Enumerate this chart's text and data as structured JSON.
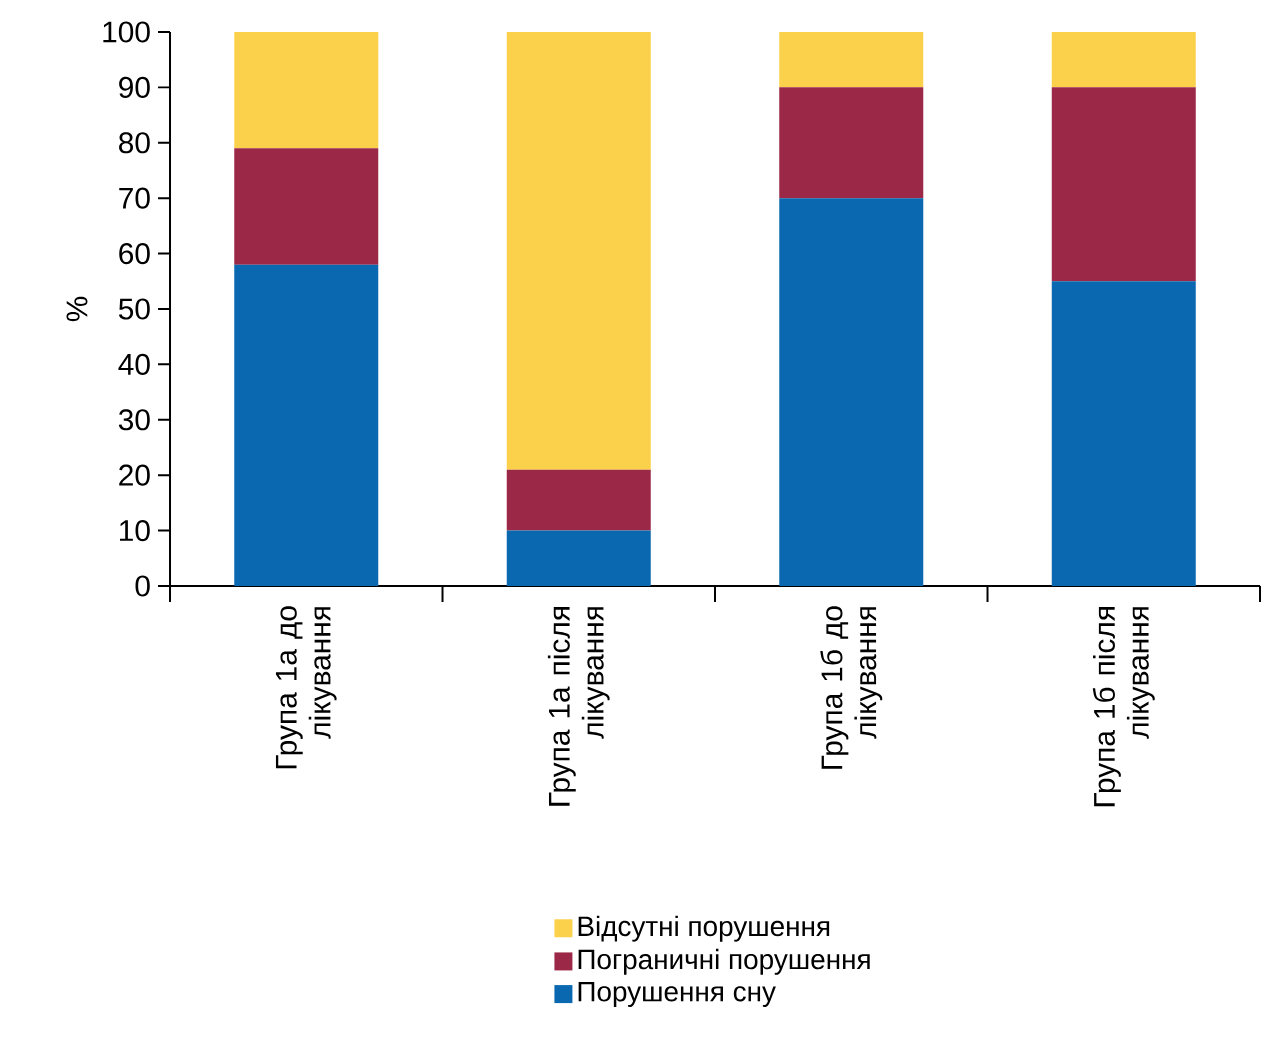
{
  "chart_data": {
    "type": "bar",
    "stacked": true,
    "ylabel": "%",
    "categories": [
      "Група 1а до лікування",
      "Група 1а після лікування",
      "Група 1б до лікування",
      "Група 1б після лікування"
    ],
    "series": [
      {
        "name": "Порушення сну",
        "color": "#0a68b0",
        "values": [
          58,
          10,
          70,
          55
        ]
      },
      {
        "name": "Пограничні порушення",
        "color": "#9c2847",
        "values": [
          21,
          11,
          20,
          35
        ]
      },
      {
        "name": "Відсутні порушення",
        "color": "#fbd14b",
        "values": [
          21,
          79,
          10,
          10
        ]
      }
    ],
    "ylim": [
      0,
      100
    ],
    "yticks": [
      0,
      10,
      20,
      30,
      40,
      50,
      60,
      70,
      80,
      90,
      100
    ],
    "legend": "bottom"
  }
}
